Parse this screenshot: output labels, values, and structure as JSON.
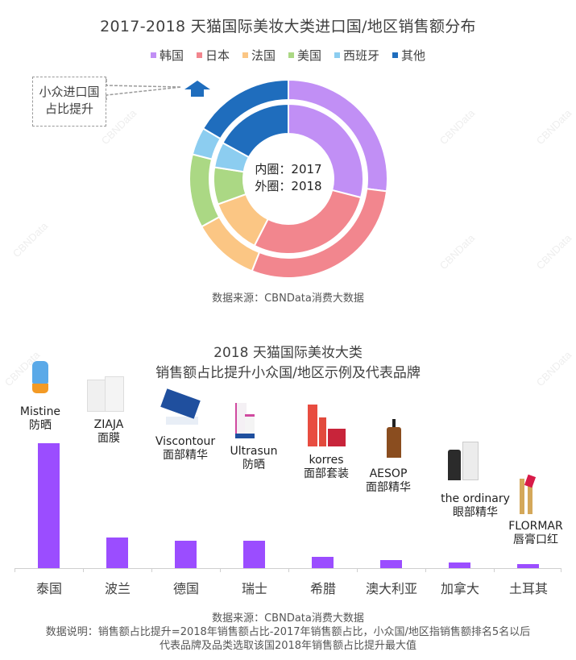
{
  "top_chart": {
    "title": "2017-2018 天猫国际美妆大类进口国/地区销售额分布",
    "legend": [
      {
        "label": "韩国",
        "color": "#c18ff5"
      },
      {
        "label": "日本",
        "color": "#f2868e"
      },
      {
        "label": "法国",
        "color": "#fbc684"
      },
      {
        "label": "美国",
        "color": "#abd884"
      },
      {
        "label": "西班牙",
        "color": "#8ccdf0"
      },
      {
        "label": "其他",
        "color": "#1f6dbd"
      }
    ],
    "callout": {
      "line1": "小众进口国",
      "line2": "占比提升",
      "arrow_icon": "up-arrow-icon"
    },
    "center_label": {
      "inner": "内圈：2017",
      "outer": "外圈：2018"
    },
    "source": "数据来源：CBNData消费大数据"
  },
  "bottom_chart": {
    "title_line1": "2018 天猫国际美妆大类",
    "title_line2": "销售额占比提升小众国/地区示例及代表品牌",
    "bar_color": "#9b4dff",
    "bars": [
      {
        "country": "泰国",
        "brand": "Mistine",
        "category": "防晒"
      },
      {
        "country": "波兰",
        "brand": "ZIAJA",
        "category": "面膜"
      },
      {
        "country": "德国",
        "brand": "Viscontour",
        "category": "面部精华"
      },
      {
        "country": "瑞士",
        "brand": "Ultrasun",
        "category": "防晒"
      },
      {
        "country": "希腊",
        "brand": "korres",
        "category": "面部套装"
      },
      {
        "country": "澳大利亚",
        "brand": "AESOP",
        "category": "面部精华"
      },
      {
        "country": "加拿大",
        "brand": "the ordinary",
        "category": "眼部精华"
      },
      {
        "country": "土耳其",
        "brand": "FLORMAR",
        "category": "唇膏口红"
      }
    ],
    "source": "数据来源：CBNData消费大数据",
    "note_line1": "数据说明：销售额占比提升=2018年销售额占比-2017年销售额占比，小众国/地区指销售额排名5名以后",
    "note_line2": "代表品牌及品类选取该国2018年销售额占比提升最大值"
  },
  "watermark": "CBNData",
  "chart_data": [
    {
      "type": "pie",
      "title": "2017-2018 天猫国际美妆大类进口国/地区销售额分布",
      "subtype": "double-donut",
      "categories": [
        "韩国",
        "日本",
        "法国",
        "美国",
        "西班牙",
        "其他"
      ],
      "series": [
        {
          "name": "2017 (内圈)",
          "values": [
            29,
            28.5,
            12,
            8,
            5.5,
            17
          ]
        },
        {
          "name": "2018 (外圈)",
          "values": [
            27,
            29,
            11,
            12,
            4.5,
            16.5
          ]
        }
      ],
      "colors": [
        "#c18ff5",
        "#f2868e",
        "#fbc684",
        "#abd884",
        "#8ccdf0",
        "#1f6dbd"
      ],
      "legend_position": "top",
      "annotations": [
        "小众进口国占比提升",
        "内圈：2017",
        "外圈：2018"
      ],
      "unit": "% (estimated from arc angles)"
    },
    {
      "type": "bar",
      "title": "2018 天猫国际美妆大类 销售额占比提升小众国/地区示例及代表品牌",
      "categories": [
        "泰国",
        "波兰",
        "德国",
        "瑞士",
        "希腊",
        "澳大利亚",
        "加拿大",
        "土耳其"
      ],
      "values": [
        155,
        38,
        34,
        34,
        14,
        10,
        7,
        5
      ],
      "value_unit": "relative bar height (no axis labels shown)",
      "annotations": [
        "Mistine 防晒",
        "ZIAJA 面膜",
        "Viscontour 面部精华",
        "Ultrasun 防晒",
        "korres 面部套装",
        "AESOP 面部精华",
        "the ordinary 眼部精华",
        "FLORMAR 唇膏口红"
      ],
      "xlabel": "",
      "ylabel": "",
      "grid": false
    }
  ]
}
